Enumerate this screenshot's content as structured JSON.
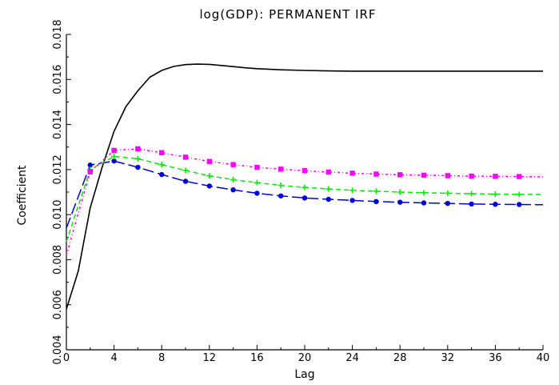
{
  "chart_data": {
    "type": "line",
    "title": "log(GDP):   PERMANENT IRF",
    "xlabel": "Lag",
    "ylabel": "Coefficient",
    "xlim": [
      0,
      40
    ],
    "ylim": [
      0.004,
      0.018
    ],
    "xticks": [
      0,
      4,
      8,
      12,
      16,
      20,
      24,
      28,
      32,
      36,
      40
    ],
    "xtick_labels": [
      "0",
      "4",
      "8",
      "12",
      "16",
      "20",
      "24",
      "28",
      "32",
      "36",
      "40"
    ],
    "yticks": [
      0.004,
      0.006,
      0.008,
      0.01,
      0.012,
      0.014,
      0.016,
      0.018
    ],
    "ytick_labels": [
      "0.004",
      "0.006",
      "0.008",
      "0.010",
      "0.012",
      "0.014",
      "0.016",
      "0.018"
    ],
    "grid": false,
    "series": [
      {
        "color": "#000000",
        "style": "solid",
        "marker": "none",
        "x": [
          0,
          1,
          2,
          3,
          4,
          5,
          6,
          7,
          8,
          9,
          10,
          11,
          12,
          13,
          14,
          15,
          16,
          18,
          20,
          22,
          24,
          26,
          28,
          30,
          32,
          34,
          36,
          38,
          40
        ],
        "y": [
          0.0058,
          0.0075,
          0.0103,
          0.0121,
          0.0137,
          0.0148,
          0.0155,
          0.0161,
          0.0164,
          0.01658,
          0.01666,
          0.01668,
          0.01667,
          0.01662,
          0.01657,
          0.01652,
          0.01648,
          0.01643,
          0.0164,
          0.01638,
          0.01637,
          0.01637,
          0.01637,
          0.01637,
          0.01637,
          0.01637,
          0.01637,
          0.01637,
          0.01637
        ]
      },
      {
        "color": "#0000dd",
        "style": "longdash",
        "marker": "circle",
        "x": [
          0,
          2,
          4,
          6,
          8,
          10,
          12,
          14,
          16,
          18,
          20,
          22,
          24,
          26,
          28,
          30,
          32,
          34,
          36,
          38,
          40
        ],
        "y": [
          0.0094,
          0.0122,
          0.01238,
          0.0121,
          0.01178,
          0.01148,
          0.01127,
          0.0111,
          0.01095,
          0.01083,
          0.01074,
          0.01068,
          0.01063,
          0.01058,
          0.01055,
          0.01052,
          0.0105,
          0.01047,
          0.01046,
          0.01045,
          0.01044
        ]
      },
      {
        "color": "#00ee00",
        "style": "dashed",
        "marker": "plus",
        "x": [
          0,
          2,
          4,
          6,
          8,
          10,
          12,
          14,
          16,
          18,
          20,
          22,
          24,
          26,
          28,
          30,
          32,
          34,
          36,
          38,
          40
        ],
        "y": [
          0.0088,
          0.012,
          0.01258,
          0.01248,
          0.01222,
          0.01196,
          0.01172,
          0.01155,
          0.01142,
          0.0113,
          0.01121,
          0.01114,
          0.01108,
          0.01104,
          0.011,
          0.01097,
          0.01095,
          0.01093,
          0.01091,
          0.0109,
          0.01089
        ]
      },
      {
        "color": "#ff00ff",
        "style": "dashdot",
        "marker": "square",
        "x": [
          0,
          2,
          4,
          6,
          8,
          10,
          12,
          14,
          16,
          18,
          20,
          22,
          24,
          26,
          28,
          30,
          32,
          34,
          36,
          38,
          40
        ],
        "y": [
          0.0082,
          0.0119,
          0.01285,
          0.01292,
          0.01275,
          0.01255,
          0.01236,
          0.01222,
          0.0121,
          0.01202,
          0.01195,
          0.01189,
          0.01184,
          0.0118,
          0.01177,
          0.01175,
          0.01173,
          0.01171,
          0.0117,
          0.01169,
          0.01168
        ]
      }
    ]
  }
}
